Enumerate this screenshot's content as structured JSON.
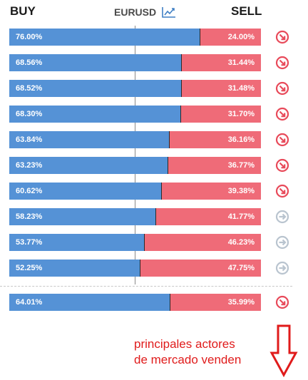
{
  "header": {
    "buy_label": "BUY",
    "pair": "EURUSD",
    "sell_label": "SELL"
  },
  "colors": {
    "buy": "#5592d6",
    "sell": "#ef6b78",
    "signal_sell": "#e84a5a",
    "signal_neutral": "#b9c4cf",
    "annotation": "#e01b1b"
  },
  "rows": [
    {
      "buy": "76.00%",
      "sell": "24.00%",
      "buy_fraction": 0.76,
      "signal": "sell"
    },
    {
      "buy": "68.56%",
      "sell": "31.44%",
      "buy_fraction": 0.6856,
      "signal": "sell"
    },
    {
      "buy": "68.52%",
      "sell": "31.48%",
      "buy_fraction": 0.6852,
      "signal": "sell"
    },
    {
      "buy": "68.30%",
      "sell": "31.70%",
      "buy_fraction": 0.683,
      "signal": "sell"
    },
    {
      "buy": "63.84%",
      "sell": "36.16%",
      "buy_fraction": 0.6384,
      "signal": "sell"
    },
    {
      "buy": "63.23%",
      "sell": "36.77%",
      "buy_fraction": 0.6323,
      "signal": "sell"
    },
    {
      "buy": "60.62%",
      "sell": "39.38%",
      "buy_fraction": 0.6062,
      "signal": "sell"
    },
    {
      "buy": "58.23%",
      "sell": "41.77%",
      "buy_fraction": 0.5823,
      "signal": "neutral"
    },
    {
      "buy": "53.77%",
      "sell": "46.23%",
      "buy_fraction": 0.5377,
      "signal": "neutral"
    },
    {
      "buy": "52.25%",
      "sell": "47.75%",
      "buy_fraction": 0.5225,
      "signal": "neutral"
    }
  ],
  "summary": {
    "buy": "64.01%",
    "sell": "35.99%",
    "buy_fraction": 0.6401,
    "signal": "sell"
  },
  "annotation": {
    "line1": "principales actores",
    "line2": "de mercado venden"
  }
}
